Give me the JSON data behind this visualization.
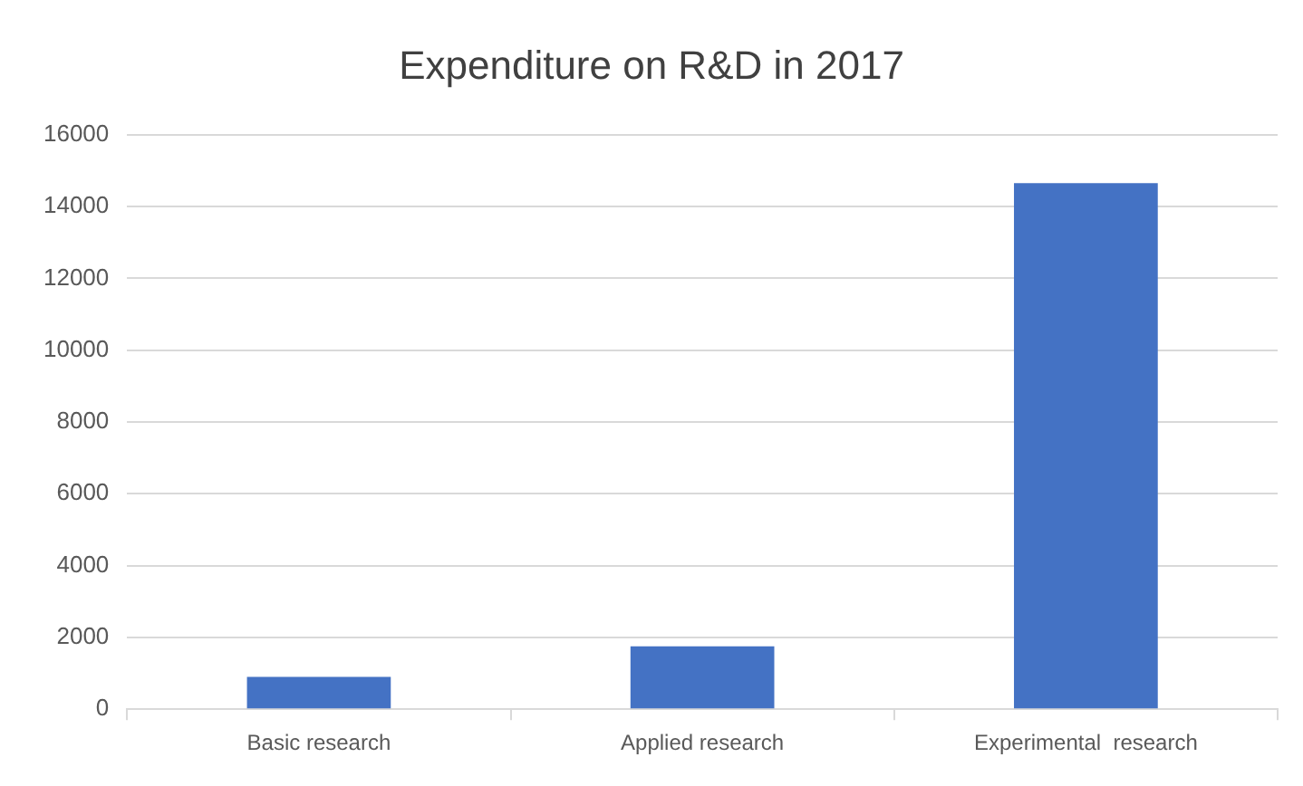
{
  "chart_data": {
    "type": "bar",
    "title": "Expenditure on R&D in 2017",
    "categories": [
      "Basic research",
      "Applied research",
      "Experimental  research"
    ],
    "values": [
      900,
      1750,
      14650
    ],
    "color": "#4472c4",
    "ylim": [
      0,
      16000
    ],
    "yticks": [
      0,
      2000,
      4000,
      6000,
      8000,
      10000,
      12000,
      14000,
      16000
    ],
    "grid": "y"
  }
}
